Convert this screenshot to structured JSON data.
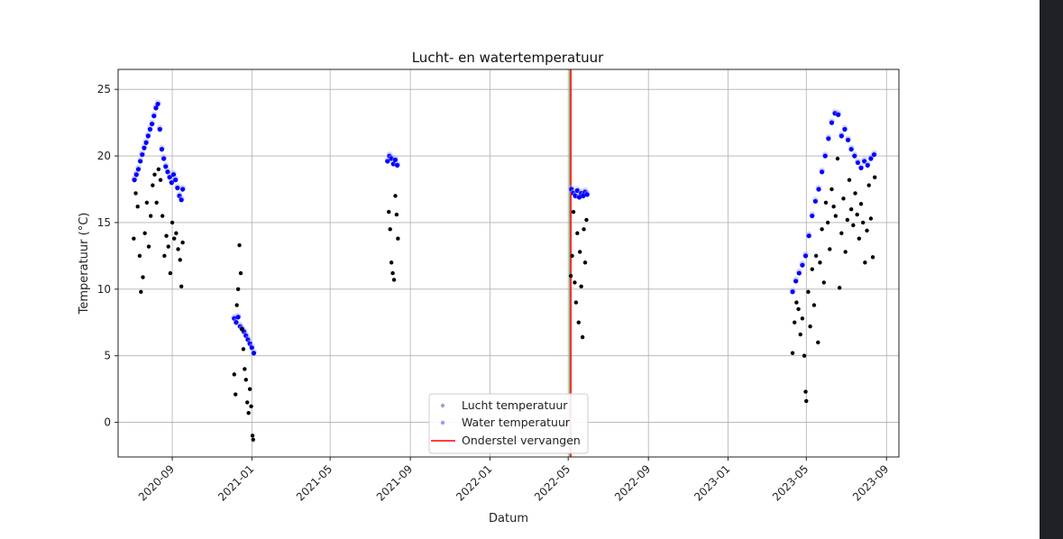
{
  "chart_data": {
    "type": "scatter",
    "title": "Lucht- en watertemperatuur",
    "xlabel": "Datum",
    "ylabel": "Temperatuur (°C)",
    "xlim": [
      "2020-06-10",
      "2023-09-20"
    ],
    "ylim": [
      -2.6,
      26.5
    ],
    "grid": true,
    "x_ticks": [
      "2020-09",
      "2021-01",
      "2021-05",
      "2021-09",
      "2022-01",
      "2022-05",
      "2022-09",
      "2023-01",
      "2023-05",
      "2023-09"
    ],
    "x_tick_dates": [
      "2020-09-01",
      "2021-01-01",
      "2021-05-01",
      "2021-09-01",
      "2022-01-01",
      "2022-05-01",
      "2022-09-01",
      "2023-01-01",
      "2023-05-01",
      "2023-09-01"
    ],
    "y_ticks": [
      0,
      5,
      10,
      15,
      20,
      25
    ],
    "legend": {
      "placement": "lower-center",
      "entries": [
        {
          "label": "Lucht temperatuur",
          "marker": "dot",
          "color": "#9aa4d8"
        },
        {
          "label": "Water temperatuur",
          "marker": "dot",
          "color": "#8f9cff"
        },
        {
          "label": "Onderstel vervangen",
          "marker": "line",
          "color": "#ff0000"
        }
      ]
    },
    "vlines": [
      {
        "date": "2022-05-05",
        "color": "#ff0000",
        "series": "Onderstel vervangen"
      },
      {
        "date": "2022-05-03",
        "color": "#66bb66",
        "series": ""
      }
    ],
    "series": [
      {
        "name": "Water temperatuur",
        "color": "#0000ff",
        "points": [
          [
            "2020-07-05",
            18.2
          ],
          [
            "2020-07-08",
            18.6
          ],
          [
            "2020-07-11",
            19.0
          ],
          [
            "2020-07-14",
            19.6
          ],
          [
            "2020-07-17",
            20.1
          ],
          [
            "2020-07-20",
            20.6
          ],
          [
            "2020-07-23",
            21.0
          ],
          [
            "2020-07-26",
            21.5
          ],
          [
            "2020-07-29",
            22.0
          ],
          [
            "2020-08-01",
            22.4
          ],
          [
            "2020-08-04",
            23.0
          ],
          [
            "2020-08-07",
            23.6
          ],
          [
            "2020-08-10",
            23.9
          ],
          [
            "2020-08-13",
            22.0
          ],
          [
            "2020-08-16",
            20.5
          ],
          [
            "2020-08-19",
            19.8
          ],
          [
            "2020-08-22",
            19.2
          ],
          [
            "2020-08-25",
            18.8
          ],
          [
            "2020-08-28",
            18.4
          ],
          [
            "2020-08-31",
            18.0
          ],
          [
            "2020-09-03",
            18.6
          ],
          [
            "2020-09-06",
            18.2
          ],
          [
            "2020-09-09",
            17.6
          ],
          [
            "2020-09-12",
            17.0
          ],
          [
            "2020-09-15",
            16.7
          ],
          [
            "2020-09-17",
            17.5
          ],
          [
            "2020-12-05",
            7.8
          ],
          [
            "2020-12-08",
            7.5
          ],
          [
            "2020-12-11",
            7.9
          ],
          [
            "2020-12-14",
            7.2
          ],
          [
            "2020-12-17",
            7.0
          ],
          [
            "2020-12-20",
            6.8
          ],
          [
            "2020-12-23",
            6.5
          ],
          [
            "2020-12-26",
            6.2
          ],
          [
            "2020-12-29",
            5.9
          ],
          [
            "2021-01-01",
            5.6
          ],
          [
            "2021-01-04",
            5.2
          ],
          [
            "2021-07-28",
            19.6
          ],
          [
            "2021-07-31",
            20.0
          ],
          [
            "2021-08-03",
            19.8
          ],
          [
            "2021-08-06",
            19.4
          ],
          [
            "2021-08-09",
            19.7
          ],
          [
            "2021-08-12",
            19.3
          ],
          [
            "2022-05-06",
            17.5
          ],
          [
            "2022-05-09",
            17.2
          ],
          [
            "2022-05-12",
            17.0
          ],
          [
            "2022-05-15",
            17.4
          ],
          [
            "2022-05-18",
            16.9
          ],
          [
            "2022-05-21",
            17.2
          ],
          [
            "2022-05-24",
            17.0
          ],
          [
            "2022-05-27",
            17.3
          ],
          [
            "2022-05-30",
            17.1
          ],
          [
            "2023-04-10",
            9.8
          ],
          [
            "2023-04-15",
            10.6
          ],
          [
            "2023-04-20",
            11.2
          ],
          [
            "2023-04-25",
            11.8
          ],
          [
            "2023-04-30",
            12.5
          ],
          [
            "2023-05-05",
            14.0
          ],
          [
            "2023-05-10",
            15.5
          ],
          [
            "2023-05-15",
            16.6
          ],
          [
            "2023-05-20",
            17.5
          ],
          [
            "2023-05-25",
            18.8
          ],
          [
            "2023-05-30",
            20.0
          ],
          [
            "2023-06-04",
            21.3
          ],
          [
            "2023-06-09",
            22.5
          ],
          [
            "2023-06-14",
            23.2
          ],
          [
            "2023-06-19",
            23.1
          ],
          [
            "2023-06-24",
            21.5
          ],
          [
            "2023-06-29",
            22.0
          ],
          [
            "2023-07-04",
            21.2
          ],
          [
            "2023-07-09",
            20.5
          ],
          [
            "2023-07-14",
            20.0
          ],
          [
            "2023-07-19",
            19.5
          ],
          [
            "2023-07-24",
            19.1
          ],
          [
            "2023-07-29",
            19.6
          ],
          [
            "2023-08-03",
            19.3
          ],
          [
            "2023-08-08",
            19.8
          ],
          [
            "2023-08-13",
            20.1
          ]
        ]
      },
      {
        "name": "Lucht temperatuur",
        "color": "#000000",
        "points": [
          [
            "2020-07-04",
            13.8
          ],
          [
            "2020-07-07",
            17.2
          ],
          [
            "2020-07-10",
            16.2
          ],
          [
            "2020-07-13",
            12.5
          ],
          [
            "2020-07-15",
            9.8
          ],
          [
            "2020-07-18",
            10.9
          ],
          [
            "2020-07-21",
            14.2
          ],
          [
            "2020-07-24",
            16.5
          ],
          [
            "2020-07-27",
            13.2
          ],
          [
            "2020-07-30",
            15.5
          ],
          [
            "2020-08-02",
            17.8
          ],
          [
            "2020-08-05",
            18.6
          ],
          [
            "2020-08-08",
            16.5
          ],
          [
            "2020-08-11",
            19.0
          ],
          [
            "2020-08-14",
            18.2
          ],
          [
            "2020-08-17",
            15.5
          ],
          [
            "2020-08-20",
            12.5
          ],
          [
            "2020-08-23",
            14.0
          ],
          [
            "2020-08-26",
            13.2
          ],
          [
            "2020-08-29",
            11.2
          ],
          [
            "2020-09-01",
            15.0
          ],
          [
            "2020-09-04",
            13.8
          ],
          [
            "2020-09-07",
            14.2
          ],
          [
            "2020-09-10",
            13.0
          ],
          [
            "2020-09-13",
            12.2
          ],
          [
            "2020-09-15",
            10.2
          ],
          [
            "2020-09-17",
            13.5
          ],
          [
            "2020-12-05",
            3.6
          ],
          [
            "2020-12-07",
            2.1
          ],
          [
            "2020-12-09",
            8.8
          ],
          [
            "2020-12-11",
            10.0
          ],
          [
            "2020-12-13",
            13.3
          ],
          [
            "2020-12-15",
            11.2
          ],
          [
            "2020-12-17",
            7.0
          ],
          [
            "2020-12-19",
            5.5
          ],
          [
            "2020-12-21",
            4.0
          ],
          [
            "2020-12-23",
            3.2
          ],
          [
            "2020-12-25",
            1.5
          ],
          [
            "2020-12-27",
            0.7
          ],
          [
            "2020-12-29",
            2.5
          ],
          [
            "2020-12-31",
            1.2
          ],
          [
            "2021-01-02",
            -1.0
          ],
          [
            "2021-01-03",
            -1.3
          ],
          [
            "2021-07-30",
            15.8
          ],
          [
            "2021-08-01",
            14.5
          ],
          [
            "2021-08-03",
            12.0
          ],
          [
            "2021-08-05",
            11.2
          ],
          [
            "2021-08-07",
            10.7
          ],
          [
            "2021-08-09",
            17.0
          ],
          [
            "2021-08-11",
            15.6
          ],
          [
            "2021-08-13",
            13.8
          ],
          [
            "2022-05-05",
            11.0
          ],
          [
            "2022-05-07",
            12.5
          ],
          [
            "2022-05-09",
            15.8
          ],
          [
            "2022-05-11",
            10.5
          ],
          [
            "2022-05-13",
            9.0
          ],
          [
            "2022-05-15",
            14.2
          ],
          [
            "2022-05-17",
            7.5
          ],
          [
            "2022-05-19",
            12.8
          ],
          [
            "2022-05-21",
            10.2
          ],
          [
            "2022-05-23",
            6.4
          ],
          [
            "2022-05-25",
            14.5
          ],
          [
            "2022-05-27",
            12.0
          ],
          [
            "2022-05-29",
            15.2
          ],
          [
            "2023-04-10",
            5.2
          ],
          [
            "2023-04-13",
            7.5
          ],
          [
            "2023-04-16",
            9.0
          ],
          [
            "2023-04-19",
            8.5
          ],
          [
            "2023-04-22",
            6.6
          ],
          [
            "2023-04-25",
            7.8
          ],
          [
            "2023-04-28",
            5.0
          ],
          [
            "2023-04-30",
            2.3
          ],
          [
            "2023-05-01",
            1.6
          ],
          [
            "2023-05-04",
            9.8
          ],
          [
            "2023-05-07",
            7.2
          ],
          [
            "2023-05-10",
            11.5
          ],
          [
            "2023-05-13",
            8.8
          ],
          [
            "2023-05-16",
            12.5
          ],
          [
            "2023-05-19",
            6.0
          ],
          [
            "2023-05-22",
            12.0
          ],
          [
            "2023-05-25",
            14.5
          ],
          [
            "2023-05-28",
            10.5
          ],
          [
            "2023-05-31",
            16.5
          ],
          [
            "2023-06-03",
            15.0
          ],
          [
            "2023-06-06",
            13.0
          ],
          [
            "2023-06-09",
            17.5
          ],
          [
            "2023-06-12",
            16.2
          ],
          [
            "2023-06-15",
            15.5
          ],
          [
            "2023-06-18",
            19.8
          ],
          [
            "2023-06-21",
            10.1
          ],
          [
            "2023-06-24",
            14.2
          ],
          [
            "2023-06-27",
            16.8
          ],
          [
            "2023-06-30",
            12.8
          ],
          [
            "2023-07-03",
            15.2
          ],
          [
            "2023-07-06",
            18.2
          ],
          [
            "2023-07-09",
            16.0
          ],
          [
            "2023-07-12",
            14.8
          ],
          [
            "2023-07-15",
            17.2
          ],
          [
            "2023-07-18",
            15.6
          ],
          [
            "2023-07-21",
            13.8
          ],
          [
            "2023-07-24",
            16.4
          ],
          [
            "2023-07-27",
            15.0
          ],
          [
            "2023-07-30",
            12.0
          ],
          [
            "2023-08-02",
            14.4
          ],
          [
            "2023-08-05",
            17.8
          ],
          [
            "2023-08-08",
            15.3
          ],
          [
            "2023-08-11",
            12.4
          ],
          [
            "2023-08-14",
            18.4
          ]
        ]
      }
    ]
  }
}
